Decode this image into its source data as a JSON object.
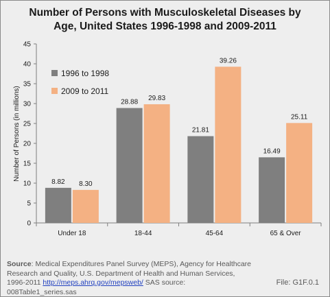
{
  "chart_data": {
    "type": "bar",
    "title_line1": "Number of Persons with Musculoskeletal Diseases by",
    "title_line2": "Age, United States 1996-1998 and 2009-2011",
    "ylabel": "Number of Persons (in millions)",
    "xlabel": "",
    "ylim": [
      0,
      45
    ],
    "yticks": [
      0,
      5,
      10,
      15,
      20,
      25,
      30,
      35,
      40,
      45
    ],
    "categories": [
      "Under 18",
      "18-44",
      "45-64",
      "65 & Over"
    ],
    "series": [
      {
        "name": "1996 to 1998",
        "color": "#7f7f7f",
        "values": [
          8.82,
          28.88,
          21.81,
          16.49
        ],
        "labels": [
          "8.82",
          "28.88",
          "21.81",
          "16.49"
        ]
      },
      {
        "name": "2009 to 2011",
        "color": "#f4b183",
        "values": [
          8.3,
          29.83,
          39.26,
          25.11
        ],
        "labels": [
          "8.30",
          "29.83",
          "39.26",
          "25.11"
        ]
      }
    ],
    "legend_position": "top-left",
    "grid": false
  },
  "footer": {
    "source_label": "Source",
    "source_text": ": Medical Expenditures Panel Survey (MEPS), Agency for Healthcare Research and Quality, U.S. Department of Health and Human Services, 1996-2011 ",
    "source_link": "http://meps.ahrq.gov/mepsweb/",
    "sas_text": " SAS source: 008Table1_series.sas",
    "file_id": "File: G1F.0.1"
  }
}
